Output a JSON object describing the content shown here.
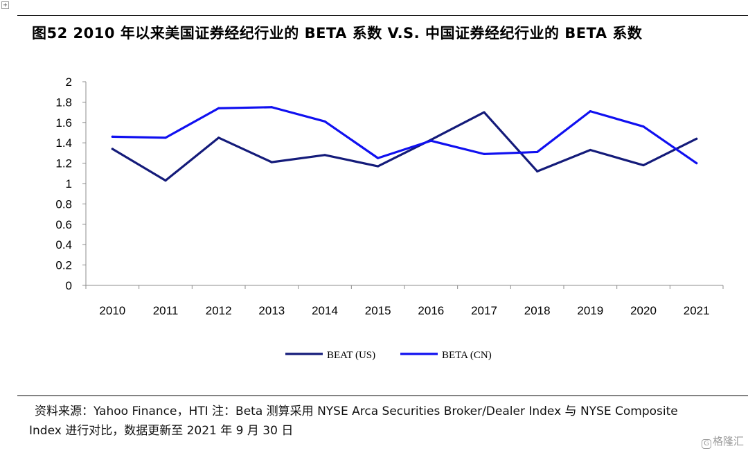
{
  "figure": {
    "title": "图52 2010 年以来美国证券经纪行业的 BETA 系数 V.S. 中国证券经纪行业的 BETA 系数"
  },
  "chart_data": {
    "type": "line",
    "title": "",
    "xlabel": "",
    "ylabel": "",
    "categories": [
      "2010",
      "2011",
      "2012",
      "2013",
      "2014",
      "2015",
      "2016",
      "2017",
      "2018",
      "2019",
      "2020",
      "2021"
    ],
    "y_ticks": [
      "0",
      "0.2",
      "0.4",
      "0.6",
      "0.8",
      "1",
      "1.2",
      "1.4",
      "1.6",
      "1.8",
      "2"
    ],
    "ylim": [
      0,
      2
    ],
    "grid": false,
    "legend_position": "bottom",
    "series": [
      {
        "name": "BEAT (US)",
        "color": "#141b7a",
        "values": [
          1.34,
          1.03,
          1.45,
          1.21,
          1.28,
          1.17,
          1.43,
          1.7,
          1.12,
          1.33,
          1.18,
          1.44
        ]
      },
      {
        "name": "BETA (CN)",
        "color": "#1010f0",
        "values": [
          1.46,
          1.45,
          1.74,
          1.75,
          1.61,
          1.25,
          1.42,
          1.29,
          1.31,
          1.71,
          1.56,
          1.2
        ]
      }
    ]
  },
  "source": {
    "line1": "资料来源：Yahoo Finance，HTI 注：Beta 测算采用 NYSE Arca Securities Broker/Dealer Index 与 NYSE Composite",
    "line2": "Index 进行对比，数据更新至 2021 年 9 月 30 日"
  },
  "watermark": {
    "icon": "gelonghui-logo-icon",
    "text": "格隆汇"
  }
}
